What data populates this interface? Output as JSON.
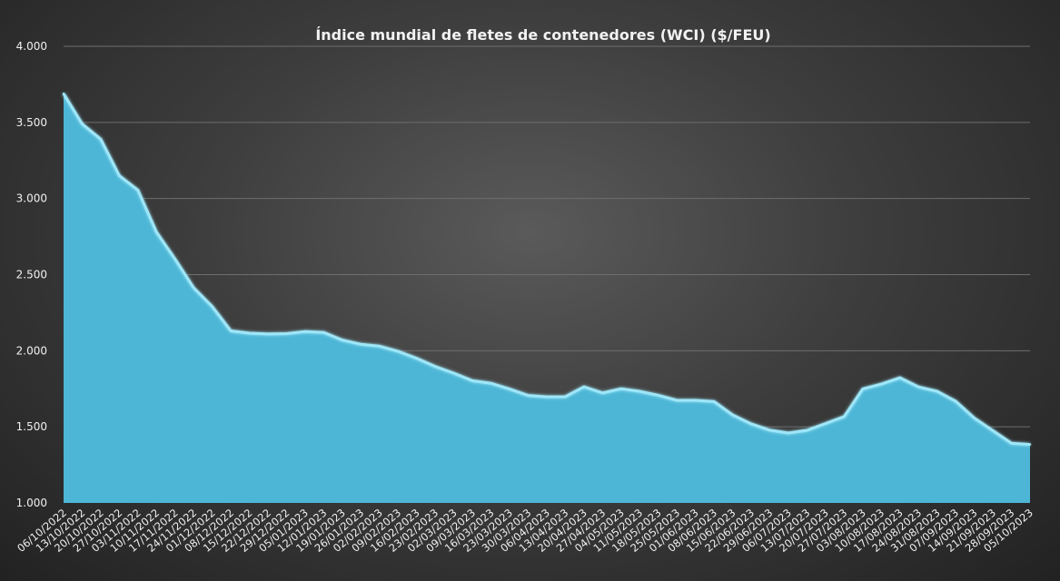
{
  "chart_data": {
    "type": "area",
    "title": "Índice mundial de fletes de contenedores (WCI) ($/FEU)",
    "xlabel": "",
    "ylabel": "",
    "ylim": [
      1000,
      4000
    ],
    "yticks": [
      1000,
      1500,
      2000,
      2500,
      3000,
      3500,
      4000
    ],
    "ytick_labels": [
      "1.000",
      "1.500",
      "2.000",
      "2.500",
      "3.000",
      "3.500",
      "4.000"
    ],
    "grid": true,
    "legend": "none",
    "colors": {
      "fill": "#4db6d6",
      "line": "#9ee6f8"
    },
    "x": [
      "06/10/2022",
      "13/10/2022",
      "20/10/2022",
      "27/10/2022",
      "03/11/2022",
      "10/11/2022",
      "17/11/2022",
      "24/11/2022",
      "01/12/2022",
      "08/12/2022",
      "15/12/2022",
      "22/12/2022",
      "29/12/2022",
      "05/01/2023",
      "12/01/2023",
      "19/01/2023",
      "26/01/2023",
      "02/02/2023",
      "09/02/2023",
      "16/02/2023",
      "23/02/2023",
      "02/03/2023",
      "09/03/2023",
      "16/03/2023",
      "23/03/2023",
      "30/03/2023",
      "06/04/2023",
      "13/04/2023",
      "20/04/2023",
      "27/04/2023",
      "04/05/2023",
      "11/05/2023",
      "18/05/2023",
      "25/05/2023",
      "01/06/2023",
      "08/06/2023",
      "15/06/2023",
      "22/06/2023",
      "29/06/2023",
      "06/07/2023",
      "13/07/2023",
      "20/07/2023",
      "27/07/2023",
      "03/08/2023",
      "10/08/2023",
      "17/08/2023",
      "24/08/2023",
      "31/08/2023",
      "07/09/2023",
      "14/09/2023",
      "21/09/2023",
      "28/09/2023",
      "05/10/2023"
    ],
    "values": [
      3689,
      3490,
      3390,
      3150,
      3055,
      2779,
      2602,
      2413,
      2290,
      2130,
      2115,
      2110,
      2112,
      2126,
      2120,
      2070,
      2042,
      2030,
      1996,
      1950,
      1896,
      1852,
      1803,
      1786,
      1748,
      1706,
      1697,
      1698,
      1763,
      1723,
      1750,
      1733,
      1707,
      1674,
      1674,
      1666,
      1578,
      1519,
      1478,
      1459,
      1477,
      1522,
      1567,
      1749,
      1781,
      1822,
      1762,
      1733,
      1668,
      1558,
      1475,
      1392,
      1384
    ]
  }
}
